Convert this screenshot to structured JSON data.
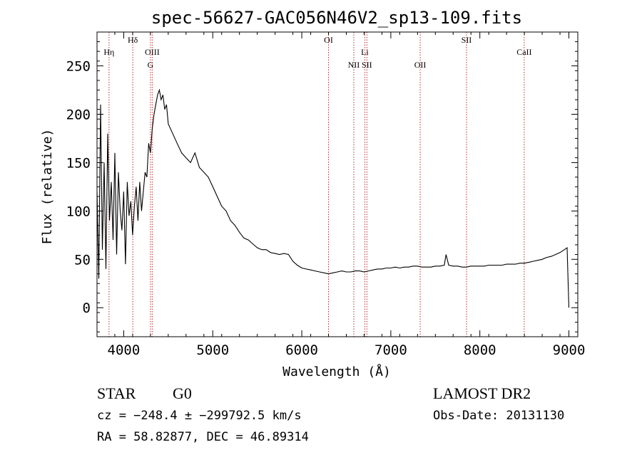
{
  "chart_data": {
    "type": "line",
    "title": "spec-56627-GAC056N46V2_sp13-109.fits",
    "xlabel": "Wavelength (Å)",
    "ylabel": "Flux (relative)",
    "xlim": [
      3700,
      9100
    ],
    "ylim": [
      -30,
      285
    ],
    "xticks": [
      4000,
      5000,
      6000,
      7000,
      8000,
      9000
    ],
    "yticks": [
      0,
      50,
      100,
      150,
      200,
      250
    ],
    "grid": false,
    "series": [
      {
        "x": [
          3700,
          3720,
          3740,
          3760,
          3780,
          3800,
          3820,
          3840,
          3860,
          3880,
          3900,
          3920,
          3940,
          3960,
          3980,
          4000,
          4020,
          4040,
          4060,
          4080,
          4100,
          4120,
          4140,
          4160,
          4180,
          4200,
          4220,
          4240,
          4260,
          4280,
          4300,
          4320,
          4340,
          4360,
          4380,
          4400,
          4420,
          4440,
          4460,
          4480,
          4500,
          4550,
          4600,
          4650,
          4700,
          4750,
          4800,
          4850,
          4900,
          4950,
          5000,
          5050,
          5100,
          5150,
          5200,
          5250,
          5300,
          5350,
          5400,
          5450,
          5500,
          5550,
          5600,
          5650,
          5700,
          5750,
          5800,
          5850,
          5900,
          5950,
          6000,
          6050,
          6100,
          6150,
          6200,
          6250,
          6300,
          6350,
          6400,
          6450,
          6500,
          6550,
          6600,
          6650,
          6700,
          6750,
          6800,
          6850,
          6900,
          6950,
          7000,
          7050,
          7100,
          7150,
          7200,
          7250,
          7300,
          7350,
          7400,
          7450,
          7500,
          7550,
          7600,
          7620,
          7650,
          7700,
          7750,
          7800,
          7850,
          7900,
          7950,
          8000,
          8050,
          8100,
          8150,
          8200,
          8250,
          8300,
          8350,
          8400,
          8450,
          8500,
          8550,
          8600,
          8650,
          8700,
          8750,
          8800,
          8850,
          8900,
          8950,
          8980,
          9000
        ],
        "values": [
          120,
          30,
          210,
          60,
          150,
          40,
          180,
          90,
          130,
          70,
          160,
          55,
          140,
          100,
          80,
          120,
          45,
          130,
          95,
          110,
          75,
          105,
          125,
          90,
          130,
          100,
          120,
          140,
          135,
          170,
          160,
          185,
          200,
          210,
          220,
          225,
          215,
          220,
          205,
          210,
          190,
          180,
          170,
          160,
          155,
          150,
          160,
          145,
          140,
          135,
          125,
          115,
          105,
          100,
          90,
          85,
          78,
          72,
          70,
          66,
          62,
          60,
          60,
          57,
          56,
          55,
          56,
          55,
          48,
          44,
          41,
          40,
          39,
          38,
          37,
          36,
          35,
          36,
          37,
          38,
          37,
          37,
          38,
          38,
          37,
          38,
          39,
          40,
          40,
          41,
          41,
          42,
          41,
          42,
          42,
          43,
          43,
          42,
          42,
          42,
          43,
          43,
          44,
          55,
          44,
          43,
          43,
          42,
          42,
          43,
          43,
          43,
          43,
          44,
          44,
          44,
          44,
          45,
          45,
          45,
          46,
          46,
          47,
          48,
          49,
          50,
          52,
          53,
          55,
          57,
          60,
          62,
          0
        ]
      }
    ],
    "spectral_lines": [
      {
        "label": "Hη",
        "x": 3835,
        "row": 0
      },
      {
        "label": "Hδ",
        "x": 4102,
        "row": -1
      },
      {
        "label": "OIII",
        "x": 4320,
        "row": 0
      },
      {
        "label": "G",
        "x": 4300,
        "row": 1
      },
      {
        "label": "OI",
        "x": 6300,
        "row": -1
      },
      {
        "label": "Li",
        "x": 6708,
        "row": 0
      },
      {
        "label": "NII",
        "x": 6584,
        "row": 1
      },
      {
        "label": "SII",
        "x": 6731,
        "row": 1
      },
      {
        "label": "OII",
        "x": 7330,
        "row": 1
      },
      {
        "label": "SII",
        "x": 7850,
        "row": -1
      },
      {
        "label": "CaII",
        "x": 8498,
        "row": 0
      }
    ]
  },
  "info": {
    "object_class": "STAR",
    "subclass": "G0",
    "survey": "LAMOST DR2",
    "cz": "cz = −248.4 ± −299792.5 km/s",
    "obs_date": "Obs-Date: 20131130",
    "coords": "RA =  58.82877, DEC =  46.89314"
  },
  "colors": {
    "line": "#000000",
    "marker_line": "#b03030"
  }
}
